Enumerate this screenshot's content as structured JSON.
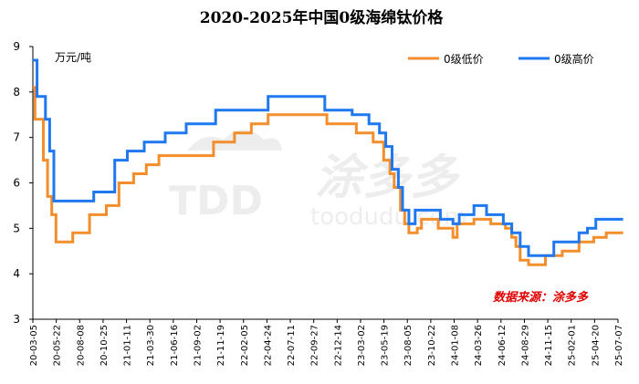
{
  "chart_data": {
    "type": "line",
    "title": "2020-2025年中国0级海绵钛价格",
    "unit_label": "万元/吨",
    "ylim": [
      3,
      9
    ],
    "yticks": [
      3,
      4,
      5,
      6,
      7,
      8,
      9
    ],
    "x_tick_labels": [
      "20-03-05",
      "20-05-22",
      "20-08-08",
      "20-10-25",
      "21-01-11",
      "21-03-30",
      "21-06-16",
      "21-09-02",
      "21-11-19",
      "22-02-05",
      "22-04-24",
      "22-07-11",
      "22-09-27",
      "22-12-14",
      "23-03-02",
      "23-05-19",
      "23-08-05",
      "23-10-22",
      "24-01-08",
      "24-03-26",
      "24-06-12",
      "24-08-29",
      "24-11-15",
      "25-02-01",
      "25-04-20",
      "25-07-07"
    ],
    "grid": false,
    "legend_position": "top-right",
    "source_text": "数据来源：涂多多",
    "watermark": {
      "logo": "TDD",
      "name": "涂多多",
      "domain": "toodudu.com"
    },
    "series": [
      {
        "name": "0级低价",
        "color": "#f28e2b",
        "points": [
          [
            "2020-03-05",
            8.1
          ],
          [
            "2020-03-12",
            7.4
          ],
          [
            "2020-04-09",
            6.5
          ],
          [
            "2020-04-23",
            5.7
          ],
          [
            "2020-05-07",
            5.3
          ],
          [
            "2020-05-21",
            4.7
          ],
          [
            "2020-07-16",
            4.9
          ],
          [
            "2020-09-10",
            5.3
          ],
          [
            "2020-11-05",
            5.5
          ],
          [
            "2020-12-17",
            6.0
          ],
          [
            "2021-02-04",
            6.2
          ],
          [
            "2021-03-18",
            6.4
          ],
          [
            "2021-04-29",
            6.6
          ],
          [
            "2021-10-28",
            6.9
          ],
          [
            "2022-01-06",
            7.1
          ],
          [
            "2022-03-03",
            7.3
          ],
          [
            "2022-04-28",
            7.5
          ],
          [
            "2022-11-10",
            7.3
          ],
          [
            "2023-02-16",
            7.1
          ],
          [
            "2023-04-13",
            6.9
          ],
          [
            "2023-05-18",
            6.5
          ],
          [
            "2023-06-08",
            6.2
          ],
          [
            "2023-06-22",
            5.9
          ],
          [
            "2023-07-13",
            5.4
          ],
          [
            "2023-07-27",
            5.1
          ],
          [
            "2023-08-10",
            4.9
          ],
          [
            "2023-09-07",
            5.0
          ],
          [
            "2023-09-21",
            5.2
          ],
          [
            "2023-11-16",
            5.0
          ],
          [
            "2024-01-04",
            4.8
          ],
          [
            "2024-01-18",
            5.1
          ],
          [
            "2024-03-14",
            5.2
          ],
          [
            "2024-05-09",
            5.1
          ],
          [
            "2024-06-27",
            5.0
          ],
          [
            "2024-07-18",
            4.8
          ],
          [
            "2024-08-01",
            4.6
          ],
          [
            "2024-08-15",
            4.3
          ],
          [
            "2024-09-12",
            4.2
          ],
          [
            "2024-11-07",
            4.4
          ],
          [
            "2025-01-02",
            4.5
          ],
          [
            "2025-02-27",
            4.7
          ],
          [
            "2025-04-17",
            4.8
          ],
          [
            "2025-05-29",
            4.9
          ],
          [
            "2025-07-24",
            4.9
          ]
        ]
      },
      {
        "name": "0级高价",
        "color": "#1f78f0",
        "points": [
          [
            "2020-03-05",
            8.7
          ],
          [
            "2020-03-19",
            7.9
          ],
          [
            "2020-04-16",
            7.4
          ],
          [
            "2020-04-30",
            6.7
          ],
          [
            "2020-05-14",
            5.6
          ],
          [
            "2020-09-24",
            5.8
          ],
          [
            "2020-12-03",
            6.5
          ],
          [
            "2021-01-14",
            6.7
          ],
          [
            "2021-03-11",
            6.9
          ],
          [
            "2021-05-20",
            7.1
          ],
          [
            "2021-07-29",
            7.3
          ],
          [
            "2021-11-04",
            7.6
          ],
          [
            "2022-04-28",
            7.9
          ],
          [
            "2022-11-03",
            7.6
          ],
          [
            "2023-02-02",
            7.5
          ],
          [
            "2023-03-30",
            7.3
          ],
          [
            "2023-05-04",
            7.1
          ],
          [
            "2023-05-25",
            6.8
          ],
          [
            "2023-06-15",
            6.3
          ],
          [
            "2023-07-06",
            5.9
          ],
          [
            "2023-07-20",
            5.4
          ],
          [
            "2023-08-10",
            5.1
          ],
          [
            "2023-08-31",
            5.4
          ],
          [
            "2023-11-23",
            5.2
          ],
          [
            "2024-01-04",
            5.1
          ],
          [
            "2024-01-25",
            5.3
          ],
          [
            "2024-03-14",
            5.5
          ],
          [
            "2024-04-25",
            5.3
          ],
          [
            "2024-06-20",
            5.1
          ],
          [
            "2024-07-18",
            4.9
          ],
          [
            "2024-08-15",
            4.6
          ],
          [
            "2024-09-12",
            4.4
          ],
          [
            "2024-12-05",
            4.7
          ],
          [
            "2025-02-27",
            4.9
          ],
          [
            "2025-03-27",
            5.0
          ],
          [
            "2025-04-24",
            5.2
          ],
          [
            "2025-07-24",
            5.2
          ]
        ]
      }
    ]
  }
}
